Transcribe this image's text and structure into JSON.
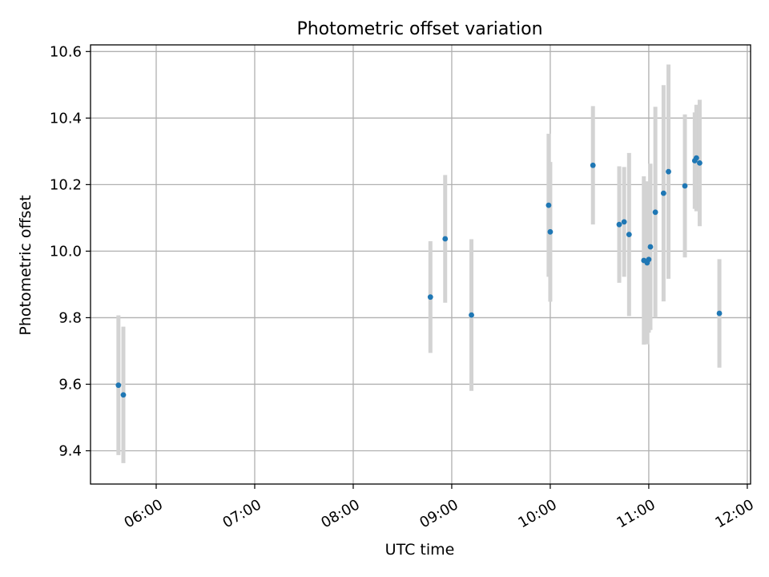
{
  "chart_data": {
    "type": "scatter",
    "title": "Photometric offset variation",
    "xlabel": "UTC time",
    "ylabel": "Photometric offset",
    "x_axis_kind": "time",
    "xlim": [
      "05:20",
      "12:02"
    ],
    "ylim": [
      9.3,
      10.62
    ],
    "grid": true,
    "x_ticks": [
      "06:00",
      "07:00",
      "08:00",
      "09:00",
      "10:00",
      "11:00",
      "12:00"
    ],
    "y_ticks": [
      9.4,
      9.6,
      9.8,
      10.0,
      10.2,
      10.4,
      10.6
    ],
    "y_tick_labels": [
      "9.4",
      "9.6",
      "9.8",
      "10.0",
      "10.2",
      "10.4",
      "10.6"
    ],
    "colors": {
      "marker": "#1f77b4",
      "errorbar": "#d3d3d3",
      "grid": "#b0b0b0",
      "axes": "#000000"
    },
    "points": [
      {
        "x": "05:37",
        "y": 9.597,
        "err": 0.21
      },
      {
        "x": "05:40",
        "y": 9.568,
        "err": 0.205
      },
      {
        "x": "08:47",
        "y": 9.862,
        "err": 0.168
      },
      {
        "x": "08:56",
        "y": 10.037,
        "err": 0.192
      },
      {
        "x": "09:12",
        "y": 9.808,
        "err": 0.228
      },
      {
        "x": "09:59",
        "y": 10.138,
        "err": 0.215
      },
      {
        "x": "10:00",
        "y": 10.058,
        "err": 0.21
      },
      {
        "x": "10:26",
        "y": 10.258,
        "err": 0.178
      },
      {
        "x": "10:42",
        "y": 10.08,
        "err": 0.175
      },
      {
        "x": "10:45",
        "y": 10.088,
        "err": 0.165
      },
      {
        "x": "10:48",
        "y": 10.05,
        "err": 0.245
      },
      {
        "x": "10:57",
        "y": 9.972,
        "err": 0.253
      },
      {
        "x": "10:59",
        "y": 9.965,
        "err": 0.245
      },
      {
        "x": "11:00",
        "y": 9.975,
        "err": 0.22
      },
      {
        "x": "11:01",
        "y": 10.013,
        "err": 0.25
      },
      {
        "x": "11:04",
        "y": 10.117,
        "err": 0.317
      },
      {
        "x": "11:09",
        "y": 10.174,
        "err": 0.325
      },
      {
        "x": "11:12",
        "y": 10.239,
        "err": 0.322
      },
      {
        "x": "11:22",
        "y": 10.196,
        "err": 0.215
      },
      {
        "x": "11:28",
        "y": 10.272,
        "err": 0.145
      },
      {
        "x": "11:29",
        "y": 10.28,
        "err": 0.16
      },
      {
        "x": "11:31",
        "y": 10.265,
        "err": 0.19
      },
      {
        "x": "11:43",
        "y": 9.813,
        "err": 0.163
      }
    ]
  }
}
